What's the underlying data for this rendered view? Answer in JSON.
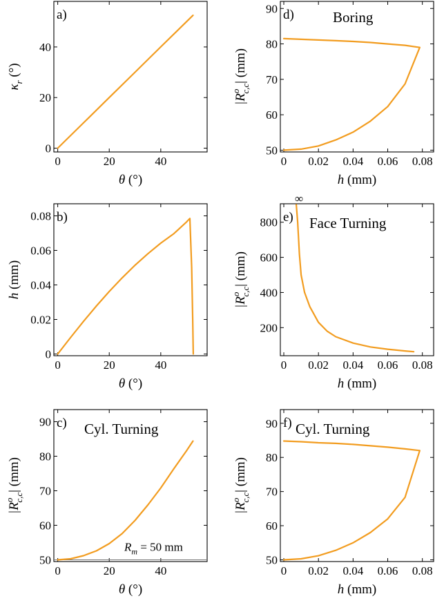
{
  "colors": {
    "curve": "#f29c1f",
    "axis": "#000000",
    "reference_line": "#777777"
  },
  "chart_data": [
    {
      "id": "a",
      "type": "line",
      "panel_label": "a)",
      "title": "",
      "xlabel": {
        "main": "θ",
        "sub": "",
        "sup": "",
        "after": "(°)"
      },
      "ylabel": {
        "main": "κ",
        "sub": "r",
        "sup": "",
        "after": "(°)"
      },
      "xlim": [
        -1.5,
        58
      ],
      "ylim": [
        -1.5,
        58
      ],
      "xticks": [
        0,
        20,
        40
      ],
      "xtick_labels": [
        "0",
        "20",
        "40"
      ],
      "yticks": [
        0,
        20,
        40
      ],
      "ytick_labels": [
        "0",
        "20",
        "40"
      ],
      "grid": false,
      "series": [
        {
          "x": [
            0,
            10,
            20,
            30,
            40,
            52.5
          ],
          "y": [
            0,
            10,
            20,
            30,
            40,
            52.5
          ]
        }
      ]
    },
    {
      "id": "b",
      "type": "line",
      "panel_label": "b)",
      "title": "",
      "xlabel": {
        "main": "θ",
        "sub": "",
        "sup": "",
        "after": "(°)"
      },
      "ylabel": {
        "main": "h",
        "sub": "",
        "sup": "",
        "after": "(mm)"
      },
      "xlim": [
        -1.5,
        58
      ],
      "ylim": [
        -0.001,
        0.087
      ],
      "xticks": [
        0,
        20,
        40
      ],
      "xtick_labels": [
        "0",
        "20",
        "40"
      ],
      "yticks": [
        0,
        0.02,
        0.04,
        0.06,
        0.08
      ],
      "ytick_labels": [
        "0",
        "0.02",
        "0.04",
        "0.06",
        "0.08"
      ],
      "grid": false,
      "series": [
        {
          "x": [
            0,
            5,
            10,
            15,
            20,
            25,
            30,
            35,
            40,
            45,
            50,
            51.3,
            52,
            52.4,
            52.6
          ],
          "y": [
            0,
            0.0096,
            0.0189,
            0.0278,
            0.0362,
            0.0441,
            0.0514,
            0.0581,
            0.0642,
            0.0696,
            0.0765,
            0.0785,
            0.05,
            0.02,
            0
          ]
        }
      ]
    },
    {
      "id": "c",
      "type": "line",
      "panel_label": "c)",
      "title": "Cyl. Turning",
      "xlabel": {
        "main": "θ",
        "sub": "",
        "sup": "",
        "after": "(°)"
      },
      "ylabel": {
        "main": "|R",
        "sub": "c,c",
        "sup": "o",
        "after": "| (mm)"
      },
      "xlim": [
        -1.5,
        58
      ],
      "ylim": [
        49.5,
        93.5
      ],
      "xticks": [
        0,
        20,
        40
      ],
      "xtick_labels": [
        "0",
        "20",
        "40"
      ],
      "yticks": [
        50,
        60,
        70,
        80,
        90
      ],
      "ytick_labels": [
        "50",
        "60",
        "70",
        "80",
        "90"
      ],
      "grid": false,
      "annotation": {
        "main": "R",
        "sub": "m",
        "after": " = 50 mm",
        "value": 50
      },
      "series": [
        {
          "x": [
            0,
            5,
            10,
            15,
            20,
            25,
            30,
            35,
            40,
            45,
            50,
            52.5
          ],
          "y": [
            50,
            50.3,
            51.2,
            52.6,
            54.7,
            57.6,
            61.4,
            65.9,
            70.8,
            76.3,
            81.6,
            84.4
          ]
        }
      ]
    },
    {
      "id": "d",
      "type": "line",
      "panel_label": "d)",
      "title": "Boring",
      "xlabel": {
        "main": "h",
        "sub": "",
        "sup": "",
        "after": "(mm)"
      },
      "ylabel": {
        "main": "|R",
        "sub": "c,c",
        "sup": "o",
        "after": "| (mm)"
      },
      "xlim": [
        -0.002,
        0.0865
      ],
      "ylim": [
        49.5,
        92
      ],
      "xticks": [
        0,
        0.02,
        0.04,
        0.06,
        0.08
      ],
      "xtick_labels": [
        "0",
        "0.02",
        "0.04",
        "0.06",
        "0.08"
      ],
      "yticks": [
        50,
        60,
        70,
        80,
        90
      ],
      "ytick_labels": [
        "50",
        "60",
        "70",
        "80",
        "90"
      ],
      "grid": false,
      "series": [
        {
          "x": [
            0,
            0.01,
            0.02,
            0.03,
            0.04,
            0.05,
            0.06,
            0.07,
            0.0785,
            0.07,
            0.06,
            0.05,
            0.04,
            0.03,
            0.02,
            0.01,
            0
          ],
          "y": [
            50,
            50.3,
            51.2,
            52.9,
            55.1,
            58.2,
            62.3,
            68.7,
            79,
            79.6,
            80.0,
            80.4,
            80.7,
            80.9,
            81.1,
            81.3,
            81.5
          ]
        }
      ]
    },
    {
      "id": "e",
      "type": "line",
      "panel_label": "e)",
      "title": "Face Turning",
      "infinity_label": "∞",
      "xlabel": {
        "main": "h",
        "sub": "",
        "sup": "",
        "after": "(mm)"
      },
      "ylabel": {
        "main": "|R",
        "sub": "c,c",
        "sup": "o",
        "after": "| (mm)"
      },
      "xlim": [
        -0.002,
        0.0865
      ],
      "ylim": [
        40,
        905
      ],
      "xticks": [
        0,
        0.02,
        0.04,
        0.06,
        0.08
      ],
      "xtick_labels": [
        "0",
        "0.02",
        "0.04",
        "0.06",
        "0.08"
      ],
      "yticks": [
        200,
        400,
        600,
        800
      ],
      "ytick_labels": [
        "200",
        "400",
        "600",
        "800"
      ],
      "grid": false,
      "series": [
        {
          "x": [
            0.0072,
            0.008,
            0.009,
            0.01,
            0.012,
            0.015,
            0.02,
            0.025,
            0.03,
            0.04,
            0.05,
            0.06,
            0.07,
            0.075
          ],
          "y": [
            900,
            800,
            620,
            500,
            400,
            320,
            230,
            180,
            148,
            112,
            90,
            77,
            67,
            63
          ]
        }
      ]
    },
    {
      "id": "f",
      "type": "line",
      "panel_label": "f)",
      "title": "Cyl. Turning",
      "xlabel": {
        "main": "h",
        "sub": "",
        "sup": "",
        "after": "(mm)"
      },
      "ylabel": {
        "main": "|R",
        "sub": "c,c",
        "sup": "o",
        "after": "| (mm)"
      },
      "xlim": [
        -0.002,
        0.0865
      ],
      "ylim": [
        49.5,
        94
      ],
      "xticks": [
        0,
        0.02,
        0.04,
        0.06,
        0.08
      ],
      "xtick_labels": [
        "0",
        "0.02",
        "0.04",
        "0.06",
        "0.08"
      ],
      "yticks": [
        50,
        60,
        70,
        80,
        90
      ],
      "ytick_labels": [
        "50",
        "60",
        "70",
        "80",
        "90"
      ],
      "grid": false,
      "series": [
        {
          "x": [
            0,
            0.01,
            0.02,
            0.03,
            0.04,
            0.05,
            0.06,
            0.07,
            0.0785,
            0.07,
            0.06,
            0.05,
            0.04,
            0.03,
            0.02,
            0.01,
            0
          ],
          "y": [
            50,
            50.3,
            51.2,
            52.8,
            55.0,
            58.0,
            62.0,
            68.3,
            82,
            82.5,
            83.0,
            83.4,
            83.8,
            84.1,
            84.3,
            84.6,
            84.8
          ]
        }
      ]
    }
  ]
}
